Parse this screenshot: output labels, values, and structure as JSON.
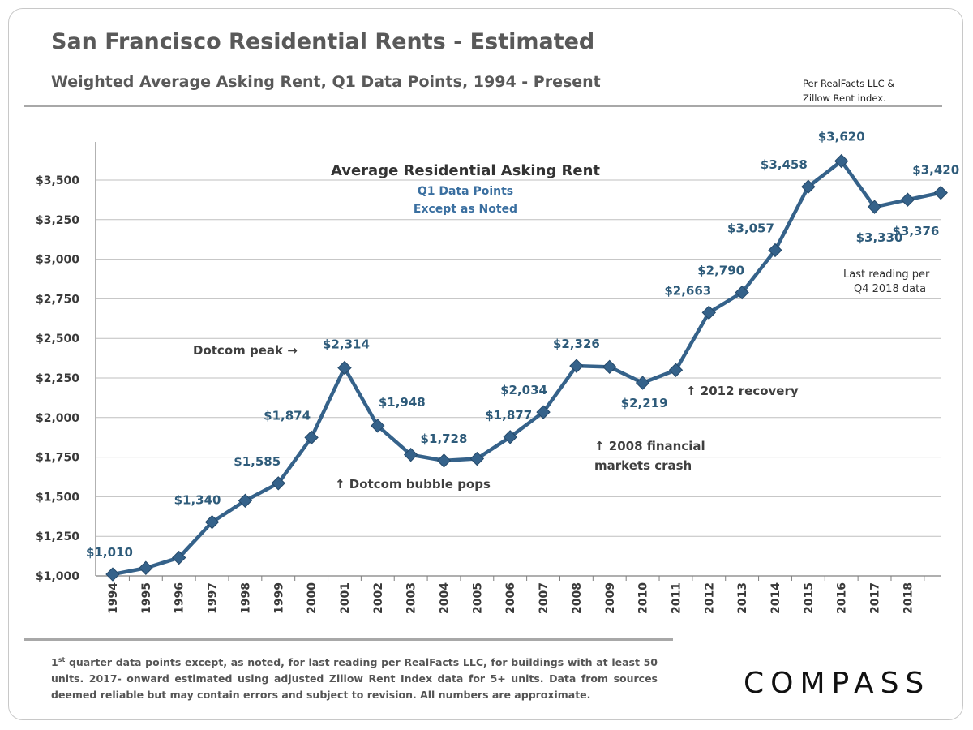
{
  "header": {
    "title": "San Francisco Residential Rents - Estimated",
    "subtitle": "Weighted Average Asking Rent, Q1 Data Points,  1994 - Present",
    "source_line1": "Per RealFacts LLC &",
    "source_line2": "Zillow Rent index."
  },
  "footer": {
    "footnote_sup": "st",
    "footnote_lead": "1",
    "footnote_text": " quarter data points except, as noted, for last reading per RealFacts LLC, for buildings with at least 50 units. 2017- onward estimated using adjusted Zillow Rent Index data for 5+ units. Data from sources deemed reliable but may contain errors and subject to revision. All numbers are approximate.",
    "logo": "COMPASS"
  },
  "chart_data": {
    "type": "line",
    "title": "Average Residential Asking Rent",
    "subtitle_lines": [
      "Q1 Data Points",
      "Except as Noted"
    ],
    "x": [
      "1994",
      "1995",
      "1996",
      "1997",
      "1998",
      "1999",
      "2000",
      "2001",
      "2002",
      "2003",
      "2004",
      "2005",
      "2006",
      "2007",
      "2008",
      "2009",
      "2010",
      "2011",
      "2012",
      "2013",
      "2014",
      "2015",
      "2016",
      "2017",
      "2018",
      "Q4 2018"
    ],
    "x_tick_labels": [
      "1994",
      "1995",
      "1996",
      "1997",
      "1998",
      "1999",
      "2000",
      "2001",
      "2002",
      "2003",
      "2004",
      "2005",
      "2006",
      "2007",
      "2008",
      "2009",
      "2010",
      "2011",
      "2012",
      "2013",
      "2014",
      "2015",
      "2016",
      "2017",
      "2018",
      ""
    ],
    "values": [
      1010,
      1050,
      1115,
      1340,
      1475,
      1585,
      1874,
      2314,
      1948,
      1765,
      1728,
      1740,
      1877,
      2034,
      2326,
      2320,
      2219,
      2300,
      2663,
      2790,
      3057,
      3458,
      3620,
      3330,
      3376,
      3420
    ],
    "data_labels": {
      "0": "$1,010",
      "3": "$1,340",
      "5": "$1,585",
      "6": "$1,874",
      "7": "$2,314",
      "8": "$1,948",
      "10": "$1,728",
      "12": "$1,877",
      "13": "$2,034",
      "14": "$2,326",
      "16": "$2,219",
      "18": "$2,663",
      "19": "$2,790",
      "20": "$3,057",
      "21": "$3,458",
      "22": "$3,620",
      "23": "$3,330",
      "24": "$3,376",
      "25": "$3,420"
    },
    "ylim": [
      1000,
      3500
    ],
    "y_ticks": [
      1000,
      1250,
      1500,
      1750,
      2000,
      2250,
      2500,
      2750,
      3000,
      3250,
      3500
    ],
    "y_tick_labels": [
      "$1,000",
      "$1,250",
      "$1,500",
      "$1,750",
      "$2,000",
      "$2,250",
      "$2,500",
      "$2,750",
      "$3,000",
      "$3,250",
      "$3,500"
    ],
    "grid": true,
    "line_color": "#35628a",
    "annotations": [
      "Dotcom peak →",
      "↑ Dotcom bubble pops",
      "↑ 2008 financial",
      "markets crash",
      "↑ 2012 recovery",
      "Last reading per",
      "Q4 2018 data"
    ]
  }
}
